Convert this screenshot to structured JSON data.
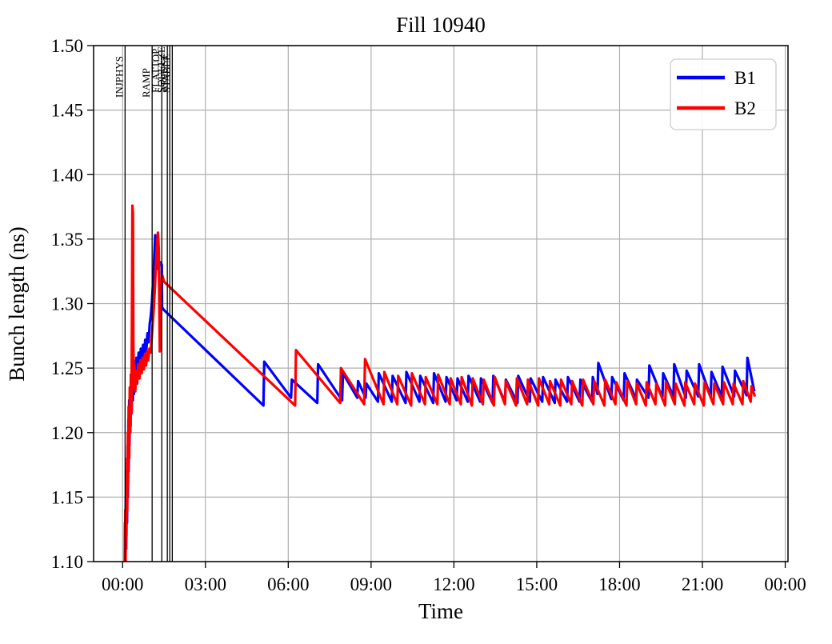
{
  "figure": {
    "title": "Fill 10940",
    "background_color": "#ffffff"
  },
  "chart_data": {
    "type": "line",
    "title": "Fill 10940",
    "xlabel": "Time",
    "ylabel": "Bunch length (ns)",
    "grid": true,
    "grid_color": "#b0b0b0",
    "spine_color": "#000000",
    "xlim_hours": [
      -1.05,
      24.1
    ],
    "ylim": [
      1.1,
      1.5
    ],
    "x_ticks": {
      "hours": [
        0,
        3,
        6,
        9,
        12,
        15,
        18,
        21,
        24
      ],
      "labels": [
        "00:00",
        "03:00",
        "06:00",
        "09:00",
        "12:00",
        "15:00",
        "18:00",
        "21:00",
        "00:00"
      ]
    },
    "y_ticks": {
      "values": [
        1.1,
        1.15,
        1.2,
        1.25,
        1.3,
        1.35,
        1.4,
        1.45,
        1.5
      ],
      "labels": [
        "1.10",
        "1.15",
        "1.20",
        "1.25",
        "1.30",
        "1.35",
        "1.40",
        "1.45",
        "1.50"
      ]
    },
    "legend": {
      "position": "upper right",
      "entries": [
        {
          "label": "B1",
          "color": "#0000ff"
        },
        {
          "label": "B2",
          "color": "#ff0000"
        }
      ]
    },
    "event_lines": [
      {
        "hour": 0.09,
        "label": "INJPHYS"
      },
      {
        "hour": 1.07,
        "label": "RAMP"
      },
      {
        "hour": 1.42,
        "label": "FLATTOP"
      },
      {
        "hour": 1.62,
        "label": "SQUEEZE"
      },
      {
        "hour": 1.71,
        "label": "ADJUST"
      },
      {
        "hour": 1.8,
        "label": "STABLE"
      }
    ],
    "series": [
      {
        "name": "B1",
        "color": "#0000ff",
        "points": [
          [
            0.07,
            1.08
          ],
          [
            0.09,
            1.13
          ],
          [
            0.1,
            1.095
          ],
          [
            0.12,
            1.15
          ],
          [
            0.13,
            1.11
          ],
          [
            0.15,
            1.17
          ],
          [
            0.16,
            1.13
          ],
          [
            0.18,
            1.19
          ],
          [
            0.19,
            1.15
          ],
          [
            0.21,
            1.21
          ],
          [
            0.22,
            1.17
          ],
          [
            0.24,
            1.225
          ],
          [
            0.25,
            1.19
          ],
          [
            0.27,
            1.235
          ],
          [
            0.29,
            1.205
          ],
          [
            0.31,
            1.245
          ],
          [
            0.33,
            1.215
          ],
          [
            0.35,
            1.25
          ],
          [
            0.37,
            1.225
          ],
          [
            0.39,
            1.252
          ],
          [
            0.41,
            1.23
          ],
          [
            0.44,
            1.255
          ],
          [
            0.47,
            1.24
          ],
          [
            0.5,
            1.258
          ],
          [
            0.54,
            1.247
          ],
          [
            0.58,
            1.262
          ],
          [
            0.62,
            1.252
          ],
          [
            0.66,
            1.265
          ],
          [
            0.7,
            1.256
          ],
          [
            0.74,
            1.268
          ],
          [
            0.78,
            1.26
          ],
          [
            0.82,
            1.272
          ],
          [
            0.86,
            1.263
          ],
          [
            0.9,
            1.277
          ],
          [
            0.94,
            1.27
          ],
          [
            0.98,
            1.284
          ],
          [
            1.02,
            1.29
          ],
          [
            1.06,
            1.3
          ],
          [
            1.09,
            1.312
          ],
          [
            1.12,
            1.322
          ],
          [
            1.15,
            1.338
          ],
          [
            1.18,
            1.353
          ],
          [
            1.21,
            1.348
          ],
          [
            1.24,
            1.352
          ],
          [
            1.27,
            1.327
          ],
          [
            1.3,
            1.332
          ],
          [
            1.34,
            1.33
          ],
          [
            1.38,
            1.332
          ],
          [
            1.42,
            1.33
          ],
          [
            1.43,
            1.297
          ],
          [
            1.5,
            1.295
          ],
          [
            5.1,
            1.221
          ],
          [
            5.13,
            1.255
          ],
          [
            6.1,
            1.227
          ],
          [
            6.13,
            1.241
          ],
          [
            7.05,
            1.223
          ],
          [
            7.08,
            1.253
          ],
          [
            7.95,
            1.225
          ],
          [
            7.98,
            1.246
          ],
          [
            8.5,
            1.227
          ],
          [
            8.53,
            1.24
          ],
          [
            8.8,
            1.227
          ],
          [
            8.83,
            1.238
          ],
          [
            9.25,
            1.224
          ],
          [
            9.28,
            1.246
          ],
          [
            9.75,
            1.224
          ],
          [
            9.78,
            1.244
          ],
          [
            10.25,
            1.223
          ],
          [
            10.28,
            1.247
          ],
          [
            10.75,
            1.224
          ],
          [
            10.78,
            1.244
          ],
          [
            11.25,
            1.223
          ],
          [
            11.28,
            1.246
          ],
          [
            11.7,
            1.224
          ],
          [
            11.73,
            1.243
          ],
          [
            12.1,
            1.225
          ],
          [
            12.13,
            1.242
          ],
          [
            12.5,
            1.224
          ],
          [
            12.53,
            1.244
          ],
          [
            12.95,
            1.224
          ],
          [
            12.98,
            1.242
          ],
          [
            13.4,
            1.223
          ],
          [
            13.43,
            1.244
          ],
          [
            13.85,
            1.224
          ],
          [
            13.88,
            1.241
          ],
          [
            14.3,
            1.223
          ],
          [
            14.33,
            1.244
          ],
          [
            14.75,
            1.224
          ],
          [
            14.78,
            1.242
          ],
          [
            15.2,
            1.224
          ],
          [
            15.23,
            1.243
          ],
          [
            15.65,
            1.223
          ],
          [
            15.68,
            1.241
          ],
          [
            16.1,
            1.224
          ],
          [
            16.13,
            1.243
          ],
          [
            16.55,
            1.224
          ],
          [
            16.58,
            1.241
          ],
          [
            17.0,
            1.224
          ],
          [
            17.03,
            1.243
          ],
          [
            17.2,
            1.23
          ],
          [
            17.23,
            1.254
          ],
          [
            17.7,
            1.226
          ],
          [
            17.73,
            1.243
          ],
          [
            18.15,
            1.225
          ],
          [
            18.18,
            1.246
          ],
          [
            18.6,
            1.226
          ],
          [
            18.63,
            1.241
          ],
          [
            19.05,
            1.227
          ],
          [
            19.08,
            1.252
          ],
          [
            19.55,
            1.227
          ],
          [
            19.58,
            1.246
          ],
          [
            19.95,
            1.228
          ],
          [
            19.98,
            1.253
          ],
          [
            20.4,
            1.227
          ],
          [
            20.43,
            1.248
          ],
          [
            20.85,
            1.228
          ],
          [
            20.88,
            1.253
          ],
          [
            21.3,
            1.228
          ],
          [
            21.33,
            1.247
          ],
          [
            21.7,
            1.228
          ],
          [
            21.73,
            1.251
          ],
          [
            22.15,
            1.228
          ],
          [
            22.18,
            1.248
          ],
          [
            22.6,
            1.229
          ],
          [
            22.63,
            1.258
          ],
          [
            22.88,
            1.232
          ]
        ]
      },
      {
        "name": "B2",
        "color": "#ff0000",
        "points": [
          [
            0.08,
            1.08
          ],
          [
            0.1,
            1.14
          ],
          [
            0.11,
            1.1
          ],
          [
            0.13,
            1.16
          ],
          [
            0.14,
            1.12
          ],
          [
            0.16,
            1.18
          ],
          [
            0.17,
            1.14
          ],
          [
            0.19,
            1.2
          ],
          [
            0.2,
            1.16
          ],
          [
            0.22,
            1.22
          ],
          [
            0.24,
            1.18
          ],
          [
            0.26,
            1.235
          ],
          [
            0.28,
            1.2
          ],
          [
            0.3,
            1.245
          ],
          [
            0.32,
            1.215
          ],
          [
            0.34,
            1.3
          ],
          [
            0.355,
            1.376
          ],
          [
            0.375,
            1.37
          ],
          [
            0.39,
            1.27
          ],
          [
            0.41,
            1.235
          ],
          [
            0.43,
            1.252
          ],
          [
            0.46,
            1.232
          ],
          [
            0.49,
            1.248
          ],
          [
            0.53,
            1.238
          ],
          [
            0.57,
            1.253
          ],
          [
            0.61,
            1.242
          ],
          [
            0.65,
            1.256
          ],
          [
            0.69,
            1.246
          ],
          [
            0.73,
            1.258
          ],
          [
            0.77,
            1.249
          ],
          [
            0.81,
            1.261
          ],
          [
            0.85,
            1.252
          ],
          [
            0.89,
            1.263
          ],
          [
            0.93,
            1.256
          ],
          [
            0.97,
            1.265
          ],
          [
            1.01,
            1.262
          ],
          [
            1.05,
            1.272
          ],
          [
            1.09,
            1.284
          ],
          [
            1.13,
            1.296
          ],
          [
            1.17,
            1.312
          ],
          [
            1.21,
            1.33
          ],
          [
            1.25,
            1.347
          ],
          [
            1.28,
            1.355
          ],
          [
            1.31,
            1.342
          ],
          [
            1.33,
            1.3
          ],
          [
            1.35,
            1.263
          ],
          [
            1.38,
            1.3
          ],
          [
            1.41,
            1.318
          ],
          [
            1.44,
            1.322
          ],
          [
            1.5,
            1.317
          ],
          [
            6.25,
            1.221
          ],
          [
            6.28,
            1.264
          ],
          [
            7.88,
            1.223
          ],
          [
            7.91,
            1.25
          ],
          [
            8.75,
            1.222
          ],
          [
            8.78,
            1.257
          ],
          [
            9.45,
            1.222
          ],
          [
            9.48,
            1.247
          ],
          [
            9.95,
            1.222
          ],
          [
            9.98,
            1.244
          ],
          [
            10.45,
            1.221
          ],
          [
            10.48,
            1.246
          ],
          [
            10.95,
            1.222
          ],
          [
            10.98,
            1.243
          ],
          [
            11.4,
            1.222
          ],
          [
            11.43,
            1.245
          ],
          [
            11.85,
            1.222
          ],
          [
            11.88,
            1.242
          ],
          [
            12.25,
            1.222
          ],
          [
            12.28,
            1.243
          ],
          [
            12.65,
            1.221
          ],
          [
            12.68,
            1.242
          ],
          [
            13.05,
            1.222
          ],
          [
            13.08,
            1.241
          ],
          [
            13.45,
            1.221
          ],
          [
            13.48,
            1.243
          ],
          [
            13.85,
            1.222
          ],
          [
            13.88,
            1.24
          ],
          [
            14.25,
            1.221
          ],
          [
            14.28,
            1.242
          ],
          [
            14.65,
            1.222
          ],
          [
            14.68,
            1.241
          ],
          [
            15.05,
            1.221
          ],
          [
            15.08,
            1.242
          ],
          [
            15.45,
            1.222
          ],
          [
            15.48,
            1.24
          ],
          [
            15.85,
            1.221
          ],
          [
            15.88,
            1.241
          ],
          [
            16.25,
            1.222
          ],
          [
            16.28,
            1.24
          ],
          [
            16.65,
            1.221
          ],
          [
            16.68,
            1.241
          ],
          [
            17.05,
            1.222
          ],
          [
            17.08,
            1.24
          ],
          [
            17.45,
            1.221
          ],
          [
            17.48,
            1.241
          ],
          [
            17.85,
            1.222
          ],
          [
            17.88,
            1.239
          ],
          [
            18.25,
            1.221
          ],
          [
            18.28,
            1.24
          ],
          [
            18.6,
            1.222
          ],
          [
            18.63,
            1.238
          ],
          [
            18.95,
            1.221
          ],
          [
            18.98,
            1.239
          ],
          [
            19.3,
            1.222
          ],
          [
            19.33,
            1.238
          ],
          [
            19.65,
            1.221
          ],
          [
            19.68,
            1.239
          ],
          [
            20.0,
            1.222
          ],
          [
            20.03,
            1.238
          ],
          [
            20.35,
            1.221
          ],
          [
            20.38,
            1.239
          ],
          [
            20.7,
            1.222
          ],
          [
            20.73,
            1.238
          ],
          [
            21.05,
            1.221
          ],
          [
            21.08,
            1.239
          ],
          [
            21.4,
            1.222
          ],
          [
            21.43,
            1.238
          ],
          [
            21.75,
            1.222
          ],
          [
            21.78,
            1.239
          ],
          [
            22.1,
            1.222
          ],
          [
            22.13,
            1.238
          ],
          [
            22.45,
            1.222
          ],
          [
            22.48,
            1.24
          ],
          [
            22.75,
            1.224
          ],
          [
            22.78,
            1.236
          ],
          [
            22.9,
            1.228
          ]
        ]
      }
    ]
  }
}
